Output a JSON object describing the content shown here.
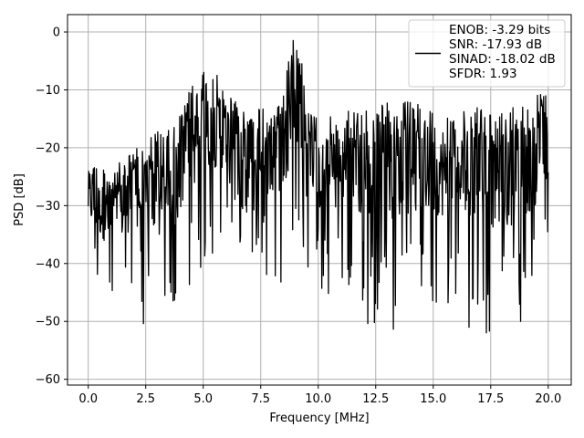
{
  "chart_data": {
    "type": "line",
    "title": "",
    "xlabel": "Frequency [MHz]",
    "ylabel": "PSD [dB]",
    "xlim": [
      -0.9,
      21.0
    ],
    "ylim": [
      -61,
      3
    ],
    "x_ticks": [
      0.0,
      2.5,
      5.0,
      7.5,
      10.0,
      12.5,
      15.0,
      17.5,
      20.0
    ],
    "x_tick_labels": [
      "0.0",
      "2.5",
      "5.0",
      "7.5",
      "10.0",
      "12.5",
      "15.0",
      "17.5",
      "20.0"
    ],
    "y_ticks": [
      0,
      -10,
      -20,
      -30,
      -40,
      -50,
      -60
    ],
    "y_tick_labels": [
      "0",
      "−10",
      "−20",
      "−30",
      "−40",
      "−50",
      "−60"
    ],
    "grid": true,
    "legend_placement": "top-right",
    "series": [
      {
        "name": "ENOB: -3.29 bits\nSNR: -17.93 dB\nSINAD: -18.02 dB\nSFDR: 1.93",
        "color": "#000000",
        "envelope": {
          "x": [
            0.0,
            0.5,
            1.0,
            1.5,
            2.0,
            2.5,
            3.0,
            3.5,
            4.0,
            4.5,
            5.0,
            5.5,
            6.0,
            6.5,
            7.0,
            7.5,
            8.0,
            8.5,
            8.8,
            9.0,
            9.2,
            9.5,
            10.0,
            11.0,
            12.0,
            13.0,
            14.0,
            15.0,
            16.0,
            17.0,
            18.0,
            19.0,
            19.5,
            20.0
          ],
          "upper": [
            -21,
            -23,
            -24,
            -22,
            -20,
            -18,
            -17,
            -17,
            -14,
            -9,
            -7,
            -6,
            -10,
            -12,
            -13,
            -13,
            -14,
            -9,
            -3,
            0,
            -2,
            -13,
            -15,
            -14,
            -13,
            -12,
            -12,
            -13,
            -14,
            -13,
            -14,
            -12,
            -10,
            -9
          ],
          "lower": [
            -44,
            -47,
            -50,
            -49,
            -46,
            -52,
            -55,
            -57,
            -48,
            -44,
            -42,
            -40,
            -37,
            -36,
            -38,
            -40,
            -44,
            -45,
            -40,
            -36,
            -39,
            -44,
            -46,
            -47,
            -51,
            -52,
            -50,
            -49,
            -50,
            -52,
            -54,
            -51,
            -49,
            -46
          ]
        }
      }
    ]
  }
}
